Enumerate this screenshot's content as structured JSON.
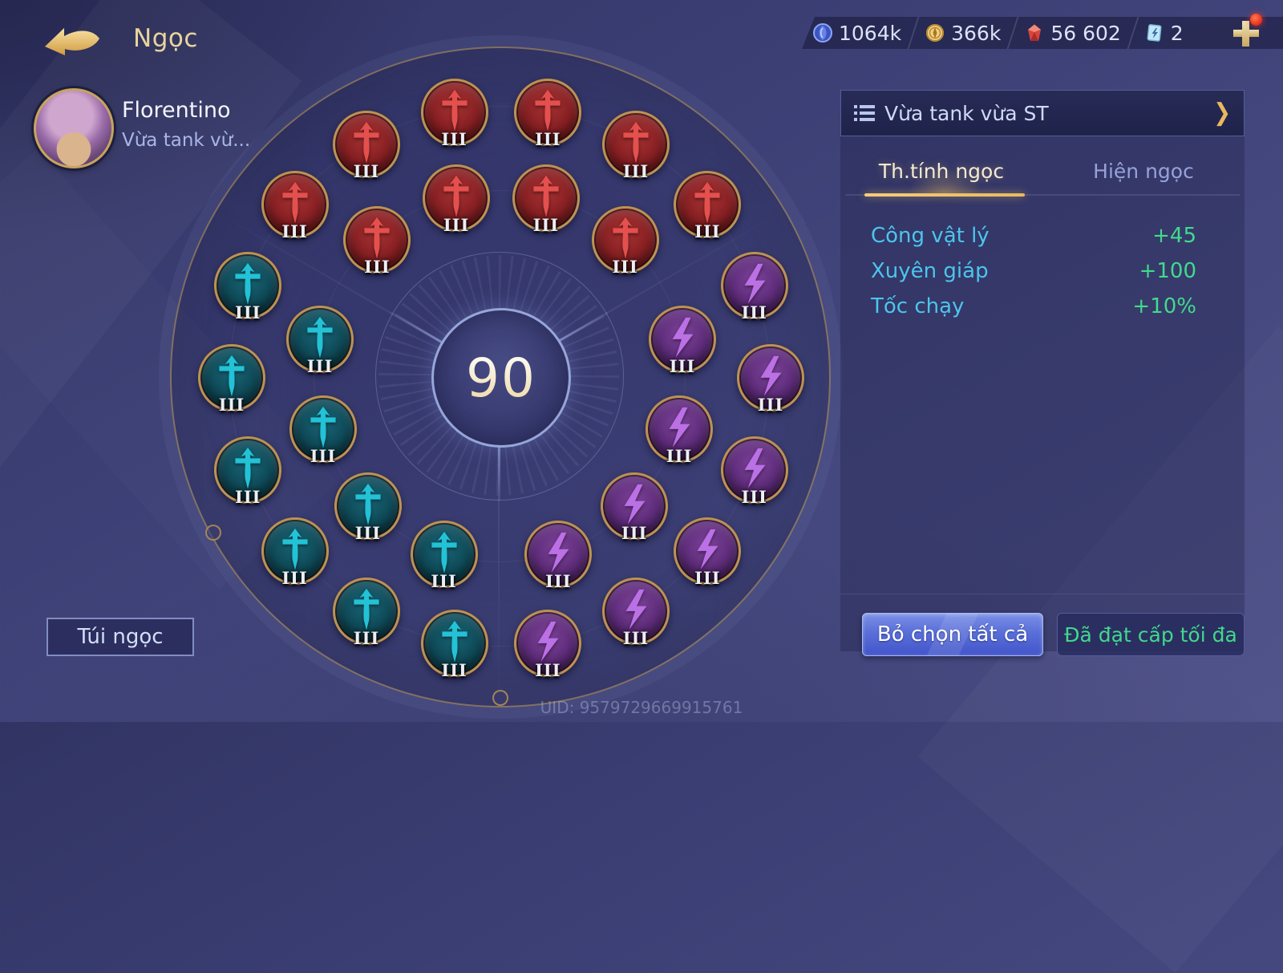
{
  "header": {
    "title": "Ngọc",
    "back_icon": "gold-swoosh-back-arrow"
  },
  "currencies": [
    {
      "icon": "blue-orb-icon",
      "value": "1064k"
    },
    {
      "icon": "gold-coin-icon",
      "value": "366k"
    },
    {
      "icon": "red-gem-icon",
      "value": "56 602"
    },
    {
      "icon": "rune-ticket-icon",
      "value": "2"
    }
  ],
  "add_currency": {
    "label": "+",
    "has_notification": true
  },
  "player": {
    "name": "Florentino",
    "rune_page_short": "Vừa tank vừ..."
  },
  "wheel": {
    "center_value": "90",
    "rune_level_label": "III",
    "sectors": [
      {
        "name": "red",
        "glyph": "sword",
        "glyph_color": "#e4504e",
        "outer_angles": [
          140,
          120,
          100,
          80,
          60,
          40
        ],
        "inner_angles": [
          132,
          104,
          76,
          48
        ]
      },
      {
        "name": "teal",
        "glyph": "sword",
        "glyph_color": "#23c2d6",
        "outer_angles": [
          160,
          180,
          200,
          220,
          240,
          260
        ],
        "inner_angles": [
          168,
          196,
          224,
          252
        ]
      },
      {
        "name": "purple",
        "glyph": "bolt",
        "glyph_color": "#bb70e6",
        "outer_angles": [
          20,
          0,
          340,
          320,
          300,
          280
        ],
        "inner_angles": [
          12,
          344,
          316,
          288
        ]
      }
    ]
  },
  "panel": {
    "page_selector": {
      "label": "Vừa tank vừa ST",
      "chevron": "❯"
    },
    "tabs": [
      {
        "label": "Th.tính ngọc",
        "active": true
      },
      {
        "label": "Hiện ngọc",
        "active": false
      }
    ],
    "stats": [
      {
        "label": "Công vật lý",
        "value": "+45"
      },
      {
        "label": "Xuyên giáp",
        "value": "+100"
      },
      {
        "label": "Tốc chạy",
        "value": "+10%"
      }
    ],
    "deselect_button": "Bỏ chọn tất cả",
    "max_level_button": "Đã đạt cấp tối đa"
  },
  "footer": {
    "bag_button": "Túi ngọc",
    "uid": "UID: 9579729669915761"
  },
  "colors": {
    "gold_accent": "#e9c878",
    "cyan_stat": "#4cc5ec",
    "green_value": "#41da8d",
    "red_rune": "#8a2124",
    "teal_rune": "#0f4a58",
    "purple_rune": "#5e2c7a"
  }
}
